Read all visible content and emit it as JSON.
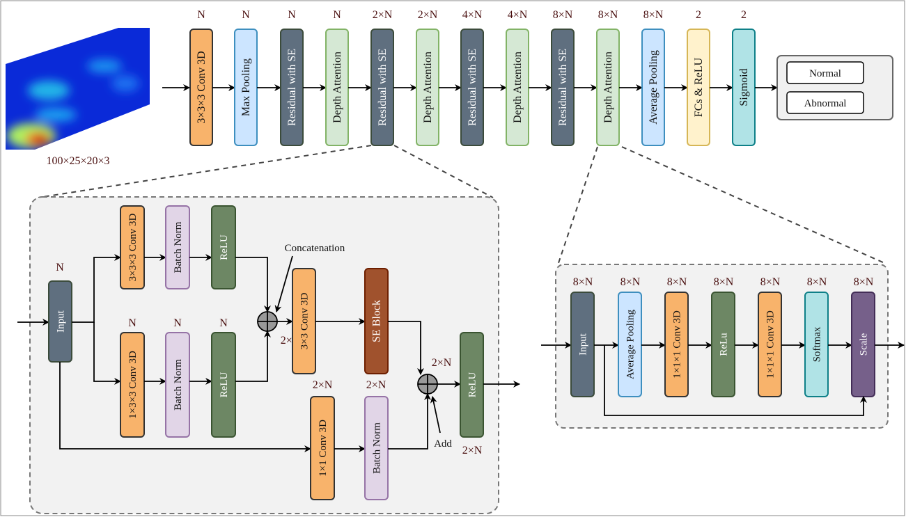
{
  "input": {
    "shape_label": "100×25×20×3"
  },
  "colors": {
    "conv": "#f8b36b",
    "pool": "#cce5ff",
    "residual": "#5f6f7f",
    "attention": "#d5e8d4",
    "fc": "#fff2cc",
    "sigmoid": "#b0e3e6",
    "batchnorm": "#e1d5e7",
    "relu": "#6d8764",
    "se": "#a0522d",
    "scale": "#76608a"
  },
  "main_pipeline": [
    {
      "label": "3×3×3 Conv 3D",
      "dim": "N",
      "type": "conv"
    },
    {
      "label": "Max Pooling",
      "dim": "N",
      "type": "pool"
    },
    {
      "label": "Residual with SE",
      "dim": "N",
      "type": "residual"
    },
    {
      "label": "Depth Attention",
      "dim": "N",
      "type": "attention"
    },
    {
      "label": "Residual with SE",
      "dim": "2×N",
      "type": "residual"
    },
    {
      "label": "Depth Attention",
      "dim": "2×N",
      "type": "attention"
    },
    {
      "label": "Residual with SE",
      "dim": "4×N",
      "type": "residual"
    },
    {
      "label": "Depth Attention",
      "dim": "4×N",
      "type": "attention"
    },
    {
      "label": "Residual with SE",
      "dim": "8×N",
      "type": "residual"
    },
    {
      "label": "Depth Attention",
      "dim": "8×N",
      "type": "attention"
    },
    {
      "label": "Average  Pooling",
      "dim": "8×N",
      "type": "pool"
    },
    {
      "label": "FCs & ReLU",
      "dim": "2",
      "type": "fc"
    },
    {
      "label": "Sigmoid",
      "dim": "2",
      "type": "sigmoid"
    }
  ],
  "outputs": [
    "Normal",
    "Abnormal"
  ],
  "residual_block": {
    "input": {
      "label": "Input",
      "dim": "N"
    },
    "top_branch": [
      {
        "label": "3×3×3 Conv 3D",
        "type": "conv"
      },
      {
        "label": "Batch Norm",
        "type": "batchnorm"
      },
      {
        "label": "ReLU",
        "type": "relu"
      }
    ],
    "bottom_branch": [
      {
        "label": "1×3×3 Conv 3D",
        "type": "conv",
        "dim": "N"
      },
      {
        "label": "Batch Norm",
        "type": "batchnorm",
        "dim": "N"
      },
      {
        "label": "ReLU",
        "type": "relu",
        "dim": "N"
      }
    ],
    "concat_label": "Concatenation",
    "concat_dim": "2×N",
    "after_concat": [
      {
        "label": "3×3 Conv 3D",
        "type": "conv"
      },
      {
        "label": "SE Block",
        "type": "se"
      }
    ],
    "shortcut": [
      {
        "label": "1×1 Conv 3D",
        "type": "conv",
        "dim": "2×N"
      },
      {
        "label": "Batch Norm",
        "type": "batchnorm",
        "dim": "2×N"
      }
    ],
    "add_label": "Add",
    "add_dim": "2×N",
    "output": {
      "label": "ReLU",
      "type": "relu",
      "dim": "2×N"
    }
  },
  "attention_block": [
    {
      "label": "Input",
      "dim": "8×N",
      "type": "residual"
    },
    {
      "label": "Average Pooling",
      "dim": "8×N",
      "type": "pool"
    },
    {
      "label": "1×1×1 Conv 3D",
      "dim": "8×N",
      "type": "conv"
    },
    {
      "label": "ReLu",
      "dim": "8×N",
      "type": "relu"
    },
    {
      "label": "1×1×1 Conv 3D",
      "dim": "8×N",
      "type": "conv"
    },
    {
      "label": "Softmax",
      "dim": "8×N",
      "type": "sigmoid"
    },
    {
      "label": "Scale",
      "dim": "8×N",
      "type": "scale"
    }
  ]
}
